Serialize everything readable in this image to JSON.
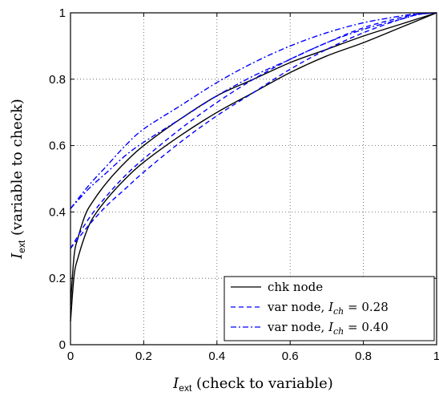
{
  "chart_data": {
    "type": "line",
    "title": "",
    "xlabel": {
      "var": "I",
      "sub": "ext",
      "rest": " (check to variable)"
    },
    "ylabel": {
      "var": "I",
      "sub": "ext",
      "rest": " (variable to check)"
    },
    "xlim": [
      0,
      1
    ],
    "ylim": [
      0,
      1
    ],
    "xticks": [
      "0",
      "0.2",
      "0.4",
      "0.6",
      "0.8",
      "1"
    ],
    "yticks": [
      "0",
      "0.2",
      "0.4",
      "0.6",
      "0.8",
      "1"
    ],
    "grid": true,
    "legend_position": "bottom-right",
    "series": [
      {
        "name": "chk node",
        "color": "#000000",
        "dash": "solid",
        "x": [
          0,
          0.01,
          0.02,
          0.04,
          0.06,
          0.1,
          0.15,
          0.2,
          0.3,
          0.4,
          0.5,
          0.6,
          0.7,
          0.8,
          0.9,
          1.0
        ],
        "y": [
          0.07,
          0.21,
          0.26,
          0.33,
          0.38,
          0.44,
          0.5,
          0.55,
          0.63,
          0.7,
          0.76,
          0.82,
          0.87,
          0.91,
          0.955,
          1.0
        ]
      },
      {
        "name": "chk node",
        "color": "#000000",
        "dash": "solid",
        "x": [
          0,
          0.01,
          0.02,
          0.04,
          0.06,
          0.1,
          0.15,
          0.2,
          0.3,
          0.4,
          0.5,
          0.6,
          0.7,
          0.8,
          0.9,
          1.0
        ],
        "y": [
          0.12,
          0.27,
          0.32,
          0.39,
          0.43,
          0.49,
          0.55,
          0.6,
          0.68,
          0.75,
          0.8,
          0.85,
          0.89,
          0.93,
          0.965,
          1.0
        ]
      },
      {
        "name": "var node, I_ch = 0.28",
        "color": "#0000ff",
        "dash": "dashed",
        "x": [
          0,
          0.05,
          0.1,
          0.15,
          0.2,
          0.3,
          0.4,
          0.5,
          0.6,
          0.7,
          0.8,
          0.9,
          0.95,
          1.0
        ],
        "y": [
          0.29,
          0.36,
          0.42,
          0.47,
          0.52,
          0.61,
          0.69,
          0.76,
          0.83,
          0.89,
          0.94,
          0.98,
          0.995,
          1.0
        ]
      },
      {
        "name": "var node, I_ch = 0.28",
        "color": "#0000ff",
        "dash": "dashed",
        "x": [
          0,
          0.05,
          0.1,
          0.15,
          0.2,
          0.3,
          0.4,
          0.5,
          0.6,
          0.7,
          0.8,
          0.9,
          0.95,
          1.0
        ],
        "y": [
          0.29,
          0.38,
          0.45,
          0.51,
          0.56,
          0.65,
          0.73,
          0.8,
          0.86,
          0.91,
          0.955,
          0.985,
          0.997,
          1.0
        ]
      },
      {
        "name": "var node, I_ch = 0.40",
        "color": "#0000ff",
        "dash": "dashdot",
        "x": [
          0,
          0.05,
          0.1,
          0.15,
          0.2,
          0.3,
          0.4,
          0.5,
          0.6,
          0.7,
          0.8,
          0.9,
          0.95,
          1.0
        ],
        "y": [
          0.41,
          0.47,
          0.52,
          0.57,
          0.61,
          0.68,
          0.75,
          0.81,
          0.86,
          0.91,
          0.95,
          0.98,
          0.995,
          1.0
        ]
      },
      {
        "name": "var node, I_ch = 0.40",
        "color": "#0000ff",
        "dash": "dashdot",
        "x": [
          0,
          0.05,
          0.1,
          0.15,
          0.2,
          0.3,
          0.4,
          0.5,
          0.6,
          0.7,
          0.8,
          0.9,
          0.95,
          1.0
        ],
        "y": [
          0.41,
          0.48,
          0.54,
          0.6,
          0.65,
          0.72,
          0.79,
          0.85,
          0.9,
          0.94,
          0.97,
          0.99,
          0.998,
          1.0
        ]
      }
    ],
    "legend": [
      {
        "text": "chk node",
        "color": "#000000",
        "dash": "solid"
      },
      {
        "text": "var node, ",
        "var": "I",
        "sub": "ch",
        "value": " = 0.28",
        "color": "#0000ff",
        "dash": "dashed"
      },
      {
        "text": "var node, ",
        "var": "I",
        "sub": "ch",
        "value": " = 0.40",
        "color": "#0000ff",
        "dash": "dashdot"
      }
    ]
  }
}
